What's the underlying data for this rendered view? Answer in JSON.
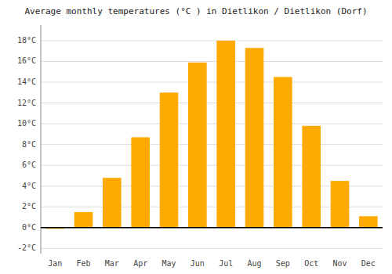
{
  "chart_data": {
    "type": "bar",
    "title": "Average monthly temperatures (°C ) in Dietlikon / Dietlikon (Dorf)",
    "categories": [
      "Jan",
      "Feb",
      "Mar",
      "Apr",
      "May",
      "Jun",
      "Jul",
      "Aug",
      "Sep",
      "Oct",
      "Nov",
      "Dec"
    ],
    "values": [
      -0.1,
      1.5,
      4.8,
      8.7,
      13.0,
      15.9,
      18.0,
      17.3,
      14.5,
      9.8,
      4.5,
      1.1
    ],
    "color": "#FFAA00",
    "ylim": [
      -2.5,
      19.5
    ],
    "yticks": [
      {
        "value": -2,
        "label": "-2°C"
      },
      {
        "value": 0,
        "label": "0°C"
      },
      {
        "value": 2,
        "label": "2°C"
      },
      {
        "value": 4,
        "label": "4°C"
      },
      {
        "value": 6,
        "label": "6°C"
      },
      {
        "value": 8,
        "label": "8°C"
      },
      {
        "value": 10,
        "label": "10°C"
      },
      {
        "value": 12,
        "label": "12°C"
      },
      {
        "value": 14,
        "label": "14°C"
      },
      {
        "value": 16,
        "label": "16°C"
      },
      {
        "value": 18,
        "label": "18°C"
      }
    ],
    "grid": true
  }
}
